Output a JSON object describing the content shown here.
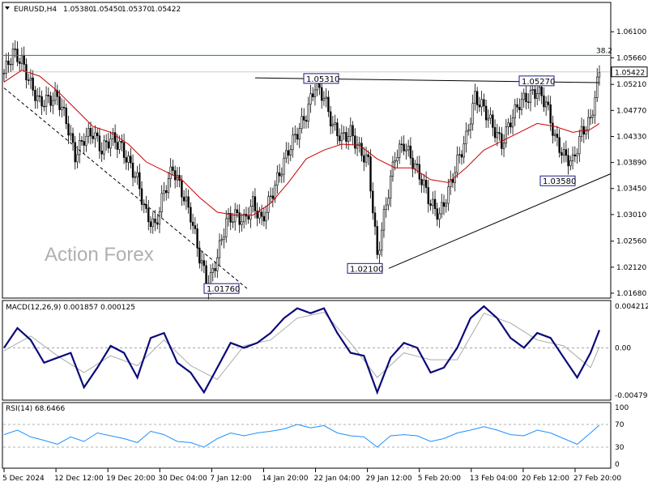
{
  "chart_data": {
    "type": "candlestick",
    "symbol": "EURUSD,H4",
    "ohlc": [
      "1.05380",
      "1.05450",
      "1.05370",
      "1.05422"
    ],
    "watermark": "Action Forex",
    "price_axis": {
      "ylim": [
        1.0168,
        1.065
      ],
      "ticks": [
        1.061,
        1.0566,
        1.0521,
        1.0477,
        1.0433,
        1.0389,
        1.0345,
        1.0301,
        1.0256,
        1.0212,
        1.0168
      ],
      "tick_labels": [
        "1.06100",
        "1.05660",
        "1.05210",
        "1.04770",
        "1.04330",
        "1.03890",
        "1.03450",
        "1.03010",
        "1.02560",
        "1.02120",
        "1.01680"
      ],
      "current_price": 1.05422,
      "current_label": "1.05422"
    },
    "x_tick_labels": [
      "5 Dec 2024",
      "12 Dec 12:00",
      "19 Dec 20:00",
      "30 Dec 04:00",
      "7 Jan 12:00",
      "14 Jan 20:00",
      "22 Jan 04:00",
      "29 Jan 12:00",
      "5 Feb 20:00",
      "13 Feb 04:00",
      "20 Feb 12:00",
      "27 Feb 20:00"
    ],
    "fib_level": {
      "label": "38.2",
      "value": 1.057
    },
    "annotations": [
      {
        "label": "1.05310",
        "value": 1.0531
      },
      {
        "label": "1.05270",
        "value": 1.0527
      },
      {
        "label": "1.03580",
        "value": 1.0358
      },
      {
        "label": "1.02100",
        "value": 1.021
      },
      {
        "label": "1.01760",
        "value": 1.0176
      }
    ],
    "close_points": [
      [
        0,
        1.054
      ],
      [
        4,
        1.0575
      ],
      [
        8,
        1.056
      ],
      [
        12,
        1.052
      ],
      [
        16,
        1.049
      ],
      [
        20,
        1.0495
      ],
      [
        24,
        1.05
      ],
      [
        28,
        1.046
      ],
      [
        32,
        1.04
      ],
      [
        36,
        1.043
      ],
      [
        40,
        1.044
      ],
      [
        44,
        1.041
      ],
      [
        48,
        1.043
      ],
      [
        52,
        1.042
      ],
      [
        56,
        1.039
      ],
      [
        60,
        1.036
      ],
      [
        64,
        1.03
      ],
      [
        68,
        1.028
      ],
      [
        72,
        1.034
      ],
      [
        76,
        1.038
      ],
      [
        80,
        1.034
      ],
      [
        84,
        1.03
      ],
      [
        88,
        1.023
      ],
      [
        92,
        1.018
      ],
      [
        96,
        1.023
      ],
      [
        100,
        1.029
      ],
      [
        104,
        1.03
      ],
      [
        108,
        1.029
      ],
      [
        112,
        1.032
      ],
      [
        116,
        1.029
      ],
      [
        120,
        1.033
      ],
      [
        124,
        1.037
      ],
      [
        128,
        1.041
      ],
      [
        132,
        1.044
      ],
      [
        136,
        1.047
      ],
      [
        140,
        1.052
      ],
      [
        144,
        1.05
      ],
      [
        148,
        1.045
      ],
      [
        152,
        1.043
      ],
      [
        156,
        1.044
      ],
      [
        160,
        1.041
      ],
      [
        164,
        1.039
      ],
      [
        168,
        1.023
      ],
      [
        172,
        1.032
      ],
      [
        176,
        1.04
      ],
      [
        180,
        1.042
      ],
      [
        184,
        1.039
      ],
      [
        188,
        1.036
      ],
      [
        192,
        1.032
      ],
      [
        196,
        1.03
      ],
      [
        200,
        1.034
      ],
      [
        204,
        1.039
      ],
      [
        208,
        1.043
      ],
      [
        212,
        1.05
      ],
      [
        216,
        1.048
      ],
      [
        220,
        1.045
      ],
      [
        224,
        1.042
      ],
      [
        228,
        1.046
      ],
      [
        232,
        1.049
      ],
      [
        236,
        1.05
      ],
      [
        240,
        1.051
      ],
      [
        244,
        1.049
      ],
      [
        248,
        1.043
      ],
      [
        252,
        1.04
      ],
      [
        256,
        1.039
      ],
      [
        260,
        1.044
      ],
      [
        264,
        1.046
      ],
      [
        268,
        1.0542
      ]
    ],
    "ma_points": [
      [
        0,
        1.0525
      ],
      [
        8,
        1.0545
      ],
      [
        16,
        1.0535
      ],
      [
        24,
        1.051
      ],
      [
        32,
        1.048
      ],
      [
        40,
        1.045
      ],
      [
        48,
        1.044
      ],
      [
        56,
        1.042
      ],
      [
        64,
        1.039
      ],
      [
        72,
        1.0375
      ],
      [
        80,
        1.036
      ],
      [
        88,
        1.033
      ],
      [
        96,
        1.0305
      ],
      [
        104,
        1.03
      ],
      [
        112,
        1.03
      ],
      [
        120,
        1.032
      ],
      [
        128,
        1.0355
      ],
      [
        136,
        1.0395
      ],
      [
        144,
        1.041
      ],
      [
        152,
        1.042
      ],
      [
        160,
        1.0418
      ],
      [
        168,
        1.0395
      ],
      [
        176,
        1.038
      ],
      [
        184,
        1.038
      ],
      [
        192,
        1.036
      ],
      [
        200,
        1.0355
      ],
      [
        208,
        1.038
      ],
      [
        216,
        1.041
      ],
      [
        224,
        1.0425
      ],
      [
        232,
        1.044
      ],
      [
        240,
        1.0455
      ],
      [
        248,
        1.045
      ],
      [
        256,
        1.044
      ],
      [
        264,
        1.0445
      ],
      [
        268,
        1.0455
      ]
    ],
    "macd": {
      "title": "MACD(12,26,9) 0.001857 0.000125",
      "ylim": [
        -0.004794,
        0.004212
      ],
      "tick_labels": [
        "0.004212",
        "0.00",
        "-0.004794"
      ],
      "tick_values": [
        0.004212,
        0,
        -0.004794
      ],
      "macd_points": [
        [
          0,
          0.0
        ],
        [
          6,
          0.002
        ],
        [
          12,
          0.0008
        ],
        [
          18,
          -0.0015
        ],
        [
          24,
          -0.001
        ],
        [
          30,
          -0.0005
        ],
        [
          36,
          -0.004
        ],
        [
          42,
          -0.002
        ],
        [
          48,
          0.0002
        ],
        [
          54,
          -0.0005
        ],
        [
          60,
          -0.003
        ],
        [
          66,
          0.001
        ],
        [
          72,
          0.0015
        ],
        [
          78,
          -0.0015
        ],
        [
          84,
          -0.0025
        ],
        [
          90,
          -0.0045
        ],
        [
          96,
          -0.002
        ],
        [
          102,
          0.0005
        ],
        [
          108,
          0.0
        ],
        [
          114,
          0.0005
        ],
        [
          120,
          0.0015
        ],
        [
          126,
          0.003
        ],
        [
          132,
          0.004
        ],
        [
          138,
          0.0035
        ],
        [
          144,
          0.004
        ],
        [
          150,
          0.0015
        ],
        [
          156,
          -0.0005
        ],
        [
          162,
          -0.0008
        ],
        [
          168,
          -0.0045
        ],
        [
          174,
          -0.001
        ],
        [
          180,
          0.0005
        ],
        [
          186,
          0.0
        ],
        [
          192,
          -0.0025
        ],
        [
          198,
          -0.002
        ],
        [
          204,
          0.0
        ],
        [
          210,
          0.003
        ],
        [
          216,
          0.0042
        ],
        [
          222,
          0.003
        ],
        [
          228,
          0.001
        ],
        [
          234,
          0.0
        ],
        [
          240,
          0.0015
        ],
        [
          246,
          0.001
        ],
        [
          252,
          -0.001
        ],
        [
          258,
          -0.003
        ],
        [
          264,
          -0.0005
        ],
        [
          268,
          0.0018
        ]
      ],
      "signal_points": [
        [
          0,
          -0.0003
        ],
        [
          12,
          0.0012
        ],
        [
          24,
          -0.0008
        ],
        [
          36,
          -0.0025
        ],
        [
          48,
          -0.0008
        ],
        [
          60,
          -0.0018
        ],
        [
          72,
          0.0008
        ],
        [
          84,
          -0.0018
        ],
        [
          96,
          -0.0032
        ],
        [
          108,
          0.0002
        ],
        [
          120,
          0.0008
        ],
        [
          132,
          0.003
        ],
        [
          144,
          0.0036
        ],
        [
          156,
          0.0005
        ],
        [
          168,
          -0.003
        ],
        [
          180,
          -0.0005
        ],
        [
          192,
          -0.0012
        ],
        [
          204,
          -0.0012
        ],
        [
          216,
          0.0035
        ],
        [
          228,
          0.0025
        ],
        [
          240,
          0.0008
        ],
        [
          252,
          0.0002
        ],
        [
          264,
          -0.002
        ],
        [
          268,
          0.0001
        ]
      ]
    },
    "rsi": {
      "title": "RSI(14) 68.6466",
      "ylim": [
        0,
        100
      ],
      "tick_labels": [
        "100",
        "70",
        "30",
        "0"
      ],
      "tick_values": [
        100,
        70,
        30,
        0
      ],
      "points": [
        [
          0,
          52
        ],
        [
          6,
          60
        ],
        [
          12,
          48
        ],
        [
          18,
          42
        ],
        [
          24,
          35
        ],
        [
          30,
          48
        ],
        [
          36,
          40
        ],
        [
          42,
          55
        ],
        [
          48,
          50
        ],
        [
          54,
          45
        ],
        [
          60,
          38
        ],
        [
          66,
          58
        ],
        [
          72,
          52
        ],
        [
          78,
          40
        ],
        [
          84,
          38
        ],
        [
          90,
          30
        ],
        [
          96,
          45
        ],
        [
          102,
          55
        ],
        [
          108,
          50
        ],
        [
          114,
          55
        ],
        [
          120,
          58
        ],
        [
          126,
          62
        ],
        [
          132,
          70
        ],
        [
          138,
          64
        ],
        [
          144,
          68
        ],
        [
          150,
          55
        ],
        [
          156,
          50
        ],
        [
          162,
          48
        ],
        [
          168,
          30
        ],
        [
          174,
          50
        ],
        [
          180,
          52
        ],
        [
          186,
          50
        ],
        [
          192,
          40
        ],
        [
          198,
          45
        ],
        [
          204,
          55
        ],
        [
          210,
          60
        ],
        [
          216,
          66
        ],
        [
          222,
          60
        ],
        [
          228,
          52
        ],
        [
          234,
          50
        ],
        [
          240,
          60
        ],
        [
          246,
          55
        ],
        [
          252,
          45
        ],
        [
          258,
          35
        ],
        [
          264,
          55
        ],
        [
          268,
          69
        ]
      ]
    }
  }
}
